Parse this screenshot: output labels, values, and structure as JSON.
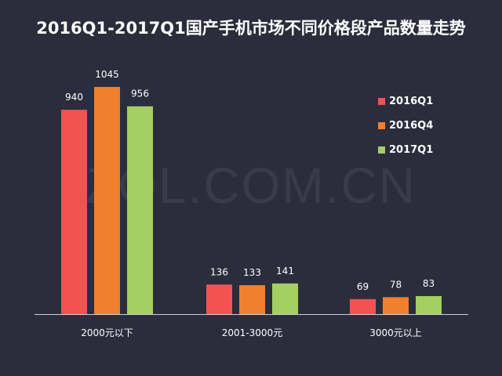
{
  "title": "2016Q1-2017Q1国产手机市场不同价格段产品数量走势",
  "watermark": "ZOL.COM.CN",
  "chart_data": {
    "type": "bar",
    "title": "2016Q1-2017Q1国产手机市场不同价格段产品数量走势",
    "categories": [
      "2000元以下",
      "2001-3000元",
      "3000元以上"
    ],
    "series": [
      {
        "name": "2016Q1",
        "color": "#f25352",
        "values": [
          940,
          136,
          69
        ]
      },
      {
        "name": "2016Q4",
        "color": "#f07f2e",
        "values": [
          1045,
          133,
          78
        ]
      },
      {
        "name": "2017Q1",
        "color": "#a4cf62",
        "values": [
          956,
          141,
          83
        ]
      }
    ],
    "xlabel": "",
    "ylabel": "",
    "ylim": [
      0,
      1045
    ],
    "grid": false,
    "legend": "top-right"
  }
}
